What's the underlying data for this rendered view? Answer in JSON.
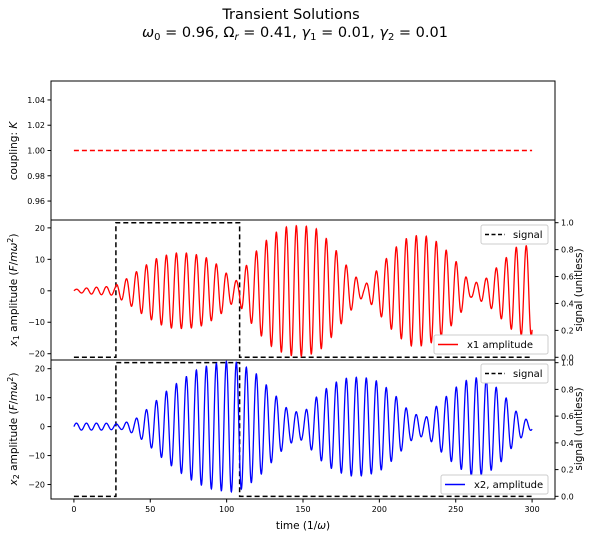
{
  "figure": {
    "title": "Transient Solutions",
    "subtitle": "ω0 = 0.96, Ωr = 0.41, γ1 = 0.01, γ2 = 0.01"
  },
  "colors": {
    "red": "#ff0000",
    "blue": "#0000ff",
    "black": "#000000"
  },
  "chart_data": [
    {
      "type": "line",
      "panel": "coupling",
      "ylabel": "coupling: K",
      "xlim": [
        -15,
        315
      ],
      "ylim": [
        0.945,
        1.055
      ],
      "yticks": [
        "0.96",
        "0.98",
        "1.00",
        "1.02",
        "1.04"
      ],
      "series": [
        {
          "style": "dashed",
          "color": "red",
          "x": [
            0,
            300
          ],
          "values": [
            1.0,
            1.0
          ]
        }
      ]
    },
    {
      "type": "line",
      "panel": "x1",
      "ylabel": "x1 amplitude (F/mω²)",
      "ylabel_right": "signal (unitless)",
      "xlim": [
        -15,
        315
      ],
      "ylim": [
        -22,
        22.5
      ],
      "yticks": [
        "−20",
        "−10",
        "0",
        "10",
        "20"
      ],
      "y2lim": [
        -0.02,
        1.02
      ],
      "y2ticks": [
        "0.0",
        "0.2",
        "0.4",
        "0.6",
        "0.8",
        "1.0"
      ],
      "legend": {
        "signal": "signal",
        "amplitude": "x1 amplitude"
      },
      "signal": {
        "x": [
          0,
          27.5,
          27.5,
          108.5,
          108.5,
          300
        ],
        "values": [
          0,
          0,
          1,
          1,
          0,
          0
        ]
      },
      "oscillation": {
        "omega": 0.96,
        "envelope": {
          "x": [
            0,
            10,
            20,
            27,
            28,
            35,
            45,
            55,
            65,
            75,
            85,
            95,
            100,
            105,
            108,
            110,
            120,
            130,
            140,
            150,
            160,
            170,
            180,
            190,
            200,
            210,
            220,
            230,
            240,
            250,
            260,
            270,
            280,
            290,
            300
          ],
          "values": [
            0.4,
            1.0,
            1.3,
            1.4,
            2.0,
            4.0,
            7.5,
            10.5,
            12.0,
            12.0,
            11.0,
            8.0,
            5.5,
            3.5,
            3.0,
            6.0,
            13.0,
            18.0,
            20.5,
            20.8,
            19.5,
            14.0,
            7.0,
            1.5,
            7.5,
            13.5,
            17.5,
            17.5,
            15.0,
            9.5,
            2.0,
            4.0,
            9.0,
            14.0,
            14.5
          ]
        }
      }
    },
    {
      "type": "line",
      "panel": "x2",
      "ylabel": "x2 amplitude (F/mω²)",
      "ylabel_right": "signal (unitless)",
      "xlabel": "time (1/ω)",
      "xlim": [
        -15,
        315
      ],
      "ylim": [
        -25,
        23
      ],
      "xticks": [
        0,
        50,
        100,
        150,
        200,
        250,
        300
      ],
      "yticks": [
        "−20",
        "−10",
        "0",
        "10",
        "20"
      ],
      "y2lim": [
        -0.02,
        1.02
      ],
      "y2ticks": [
        "0.0",
        "0.2",
        "0.4",
        "0.6",
        "0.8",
        "1.0"
      ],
      "legend": {
        "signal": "signal",
        "amplitude": "x2, amplitude"
      },
      "signal": {
        "x": [
          0,
          27.5,
          27.5,
          108.5,
          108.5,
          300
        ],
        "values": [
          0,
          0,
          1,
          1,
          0,
          0
        ]
      },
      "oscillation": {
        "omega": 0.96,
        "envelope": {
          "x": [
            0,
            10,
            20,
            27,
            30,
            40,
            50,
            60,
            70,
            80,
            90,
            100,
            105,
            110,
            120,
            130,
            140,
            150,
            160,
            170,
            180,
            190,
            200,
            210,
            220,
            230,
            240,
            250,
            260,
            270,
            280,
            290,
            300
          ],
          "values": [
            1.2,
            1.2,
            1.2,
            1.0,
            0.8,
            2.5,
            7.0,
            12.0,
            16.0,
            19.5,
            21.5,
            22.5,
            22.5,
            21.5,
            18.0,
            12.0,
            6.0,
            4.5,
            11.0,
            15.0,
            17.0,
            17.0,
            15.5,
            11.0,
            5.0,
            3.0,
            8.5,
            13.5,
            17.0,
            16.5,
            12.0,
            5.0,
            1.0
          ]
        }
      }
    }
  ]
}
